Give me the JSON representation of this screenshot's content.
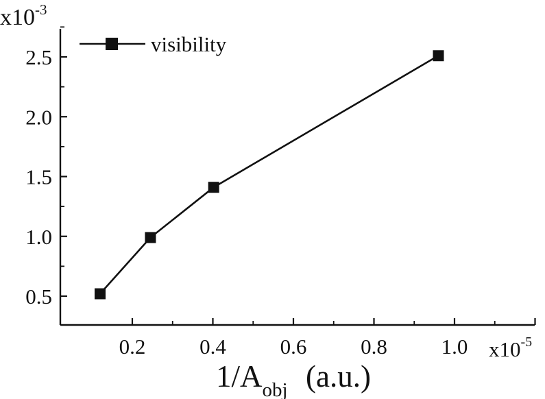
{
  "chart_data": {
    "type": "line",
    "title": "",
    "xlabel": {
      "main": "1/A",
      "subscript": "obj",
      "unit": "(a.u.)"
    },
    "ylabel": "",
    "x_multiplier": {
      "base": "x10",
      "exponent": "-5"
    },
    "y_multiplier": {
      "base": "x10",
      "exponent": "-3"
    },
    "xlim": [
      0.05,
      1.2
    ],
    "ylim": [
      0.3,
      2.75
    ],
    "x_ticks": [
      {
        "value": 0.2,
        "label": "0.2"
      },
      {
        "value": 0.4,
        "label": "0.4"
      },
      {
        "value": 0.6,
        "label": "0.6"
      },
      {
        "value": 0.8,
        "label": "0.8"
      },
      {
        "value": 1.0,
        "label": "1.0"
      }
    ],
    "y_ticks": [
      {
        "value": 0.5,
        "label": "0.5"
      },
      {
        "value": 1.0,
        "label": "1.0"
      },
      {
        "value": 1.5,
        "label": "1.5"
      },
      {
        "value": 2.0,
        "label": "2.0"
      },
      {
        "value": 2.5,
        "label": "2.5"
      }
    ],
    "grid": false,
    "legend_position": "top-left",
    "series": [
      {
        "name": "visibility",
        "marker": "square",
        "color": "#111111",
        "points": [
          {
            "x": 0.12,
            "y": 0.52
          },
          {
            "x": 0.245,
            "y": 0.99
          },
          {
            "x": 0.402,
            "y": 1.41
          },
          {
            "x": 0.96,
            "y": 2.51
          }
        ]
      }
    ]
  }
}
